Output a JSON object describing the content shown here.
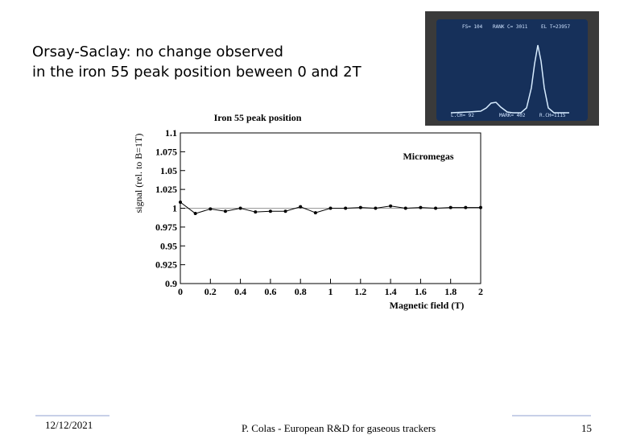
{
  "slide": {
    "title_line1": "Orsay-Saclay: no change observed",
    "title_line2": "in the iron 55 peak position beween 0 and 2T"
  },
  "scope": {
    "top_left": "FS= 104",
    "top_mid": "RANK C= 3011",
    "top_right": "EL T=23957",
    "bottom_left": "L.CH= 92",
    "bottom_mid": "MARK= 402",
    "bottom_right": "R.CH=1115",
    "colors": {
      "screen": "#16305a",
      "trace": "#d7ecff"
    }
  },
  "footer": {
    "date": "12/12/2021",
    "author": "P. Colas - European R&D for gaseous trackers",
    "page": "15"
  },
  "chart_data": {
    "type": "line",
    "title": "Iron 55 peak position",
    "xlabel": "Magnetic field (T)",
    "ylabel": "signal (rel. to B=1T)",
    "annotation": "Micromegas",
    "xlim": [
      0,
      2
    ],
    "ylim": [
      0.9,
      1.1
    ],
    "xticks": [
      0,
      0.2,
      0.4,
      0.6,
      0.8,
      1,
      1.2,
      1.4,
      1.6,
      1.8,
      2
    ],
    "xtick_labels": [
      "0",
      "0.2",
      "0.4",
      "0.6",
      "0.8",
      "1",
      "1.2",
      "1.4",
      "1.6",
      "1.8",
      "2"
    ],
    "yticks": [
      0.9,
      0.925,
      0.95,
      0.975,
      1,
      1.025,
      1.05,
      1.075,
      1.1
    ],
    "ytick_labels": [
      "0.9",
      "0.925",
      "0.95",
      "0.975",
      "1",
      "1.025",
      "1.05",
      "1.075",
      "1.1"
    ],
    "reference_line": 1,
    "series": [
      {
        "x": [
          0,
          0.1,
          0.2,
          0.3,
          0.4,
          0.5,
          0.6,
          0.7,
          0.8,
          0.9,
          1.0,
          1.1,
          1.2,
          1.3,
          1.4,
          1.5,
          1.6,
          1.7,
          1.8,
          1.9,
          2.0
        ],
        "values": [
          1.008,
          0.993,
          0.999,
          0.996,
          1.0,
          0.995,
          0.996,
          0.996,
          1.002,
          0.994,
          1.0,
          1.0,
          1.001,
          1.0,
          1.003,
          1.0,
          1.001,
          1.0,
          1.001,
          1.001,
          1.001
        ]
      }
    ]
  }
}
